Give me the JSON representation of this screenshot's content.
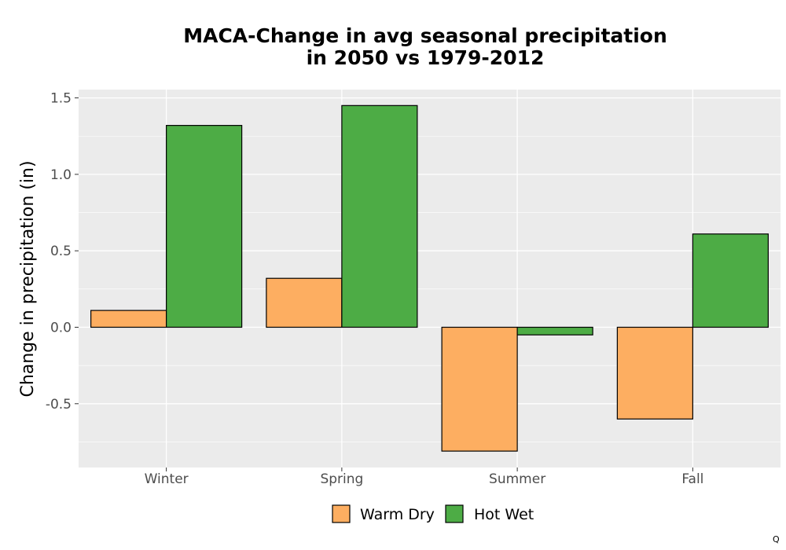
{
  "chart_data": {
    "type": "bar",
    "title": [
      "MACA-Change in avg seasonal precipitation",
      "in 2050 vs 1979-2012"
    ],
    "xlabel": "",
    "ylabel": "Change in precipitation (in)",
    "categories": [
      "Winter",
      "Spring",
      "Summer",
      "Fall"
    ],
    "series": [
      {
        "name": "Warm Dry",
        "color": "#FDAE61",
        "values": [
          0.11,
          0.32,
          -0.81,
          -0.6
        ]
      },
      {
        "name": "Hot Wet",
        "color": "#4DAC45",
        "values": [
          1.32,
          1.45,
          -0.05,
          0.61
        ]
      }
    ],
    "ylim": [
      -0.92,
      1.55
    ],
    "yticks": [
      -0.5,
      0.0,
      0.5,
      1.0,
      1.5
    ],
    "ytick_labels": [
      "-0.5",
      "0.0",
      "0.5",
      "1.0",
      "1.5"
    ],
    "grid": true,
    "legend_position": "bottom",
    "corner_mark": "Q"
  }
}
